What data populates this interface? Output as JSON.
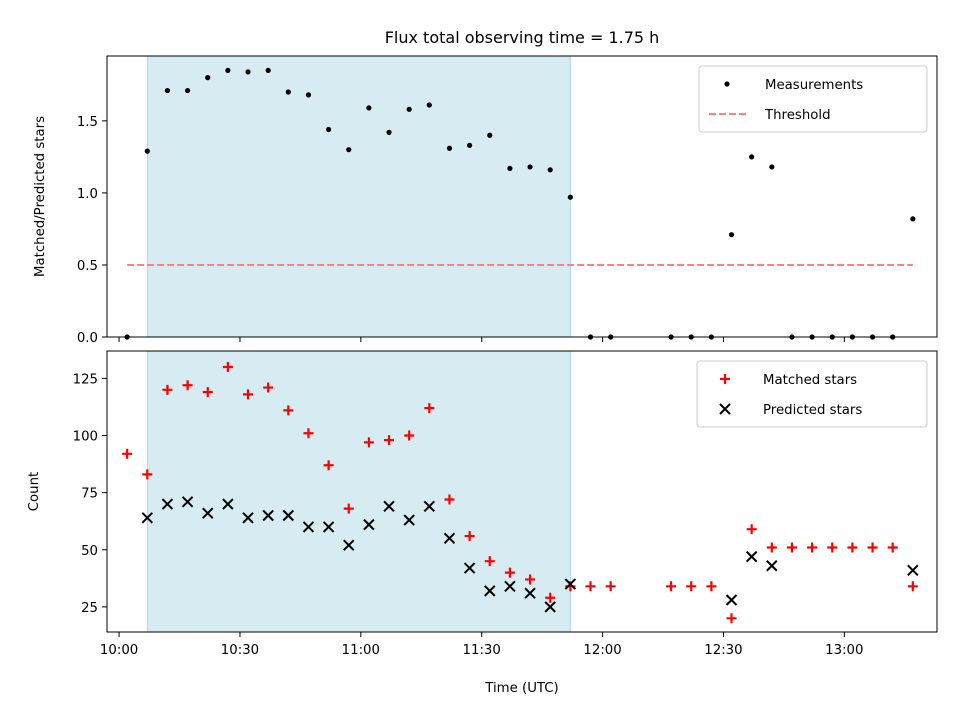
{
  "title": "Flux total observing time = 1.75 h",
  "colors": {
    "span": "#add8e6",
    "measurement": "#000000",
    "threshold": "#ff7f7f",
    "matched": "#ff0000",
    "predicted": "#000000"
  },
  "chart_data": [
    {
      "type": "scatter",
      "ylabel": "Matched/Predicted stars",
      "xlabel": "",
      "xlim": [
        "09:57",
        "13:23"
      ],
      "ylim": [
        0,
        1.95
      ],
      "yticks": [
        "0.0",
        "0.5",
        "1.0",
        "1.5"
      ],
      "grid": false,
      "legend_position": "top-right",
      "shaded_span": [
        "10:07",
        "11:52"
      ],
      "series": [
        {
          "name": "Measurements",
          "marker": "dot",
          "points": [
            [
              "10:02",
              0.0
            ],
            [
              "10:07",
              1.29
            ],
            [
              "10:12",
              1.71
            ],
            [
              "10:17",
              1.71
            ],
            [
              "10:22",
              1.8
            ],
            [
              "10:27",
              1.85
            ],
            [
              "10:32",
              1.84
            ],
            [
              "10:37",
              1.85
            ],
            [
              "10:42",
              1.7
            ],
            [
              "10:47",
              1.68
            ],
            [
              "10:52",
              1.44
            ],
            [
              "10:57",
              1.3
            ],
            [
              "11:02",
              1.59
            ],
            [
              "11:07",
              1.42
            ],
            [
              "11:12",
              1.58
            ],
            [
              "11:17",
              1.61
            ],
            [
              "11:22",
              1.31
            ],
            [
              "11:27",
              1.33
            ],
            [
              "11:32",
              1.4
            ],
            [
              "11:37",
              1.17
            ],
            [
              "11:42",
              1.18
            ],
            [
              "11:47",
              1.16
            ],
            [
              "11:52",
              0.97
            ],
            [
              "11:57",
              0.0
            ],
            [
              "12:02",
              0.0
            ],
            [
              "12:17",
              0.0
            ],
            [
              "12:22",
              0.0
            ],
            [
              "12:27",
              0.0
            ],
            [
              "12:32",
              0.71
            ],
            [
              "12:37",
              1.25
            ],
            [
              "12:42",
              1.18
            ],
            [
              "12:47",
              0.0
            ],
            [
              "12:52",
              0.0
            ],
            [
              "12:57",
              0.0
            ],
            [
              "13:02",
              0.0
            ],
            [
              "13:07",
              0.0
            ],
            [
              "13:12",
              0.0
            ],
            [
              "13:17",
              0.82
            ]
          ]
        },
        {
          "name": "Threshold",
          "marker": "dashed-line",
          "points": [
            [
              "10:02",
              0.5
            ],
            [
              "13:17",
              0.5
            ]
          ]
        }
      ]
    },
    {
      "type": "scatter",
      "ylabel": "Count",
      "xlabel": "Time (UTC)",
      "xlim": [
        "09:57",
        "13:23"
      ],
      "ylim": [
        14,
        137
      ],
      "yticks": [
        "25",
        "50",
        "75",
        "100",
        "125"
      ],
      "xticks": [
        "10:00",
        "10:30",
        "11:00",
        "11:30",
        "12:00",
        "12:30",
        "13:00"
      ],
      "grid": false,
      "legend_position": "top-right",
      "shaded_span": [
        "10:07",
        "11:52"
      ],
      "series": [
        {
          "name": "Matched stars",
          "marker": "plus",
          "points": [
            [
              "10:02",
              92
            ],
            [
              "10:07",
              83
            ],
            [
              "10:12",
              120
            ],
            [
              "10:17",
              122
            ],
            [
              "10:22",
              119
            ],
            [
              "10:27",
              130
            ],
            [
              "10:32",
              118
            ],
            [
              "10:37",
              121
            ],
            [
              "10:42",
              111
            ],
            [
              "10:47",
              101
            ],
            [
              "10:52",
              87
            ],
            [
              "10:57",
              68
            ],
            [
              "11:02",
              97
            ],
            [
              "11:07",
              98
            ],
            [
              "11:12",
              100
            ],
            [
              "11:17",
              112
            ],
            [
              "11:22",
              72
            ],
            [
              "11:27",
              56
            ],
            [
              "11:32",
              45
            ],
            [
              "11:37",
              40
            ],
            [
              "11:42",
              37
            ],
            [
              "11:47",
              29
            ],
            [
              "11:52",
              34
            ],
            [
              "11:57",
              34
            ],
            [
              "12:02",
              34
            ],
            [
              "12:17",
              34
            ],
            [
              "12:22",
              34
            ],
            [
              "12:27",
              34
            ],
            [
              "12:32",
              20
            ],
            [
              "12:37",
              59
            ],
            [
              "12:42",
              51
            ],
            [
              "12:47",
              51
            ],
            [
              "12:52",
              51
            ],
            [
              "12:57",
              51
            ],
            [
              "13:02",
              51
            ],
            [
              "13:07",
              51
            ],
            [
              "13:12",
              51
            ],
            [
              "13:17",
              34
            ]
          ]
        },
        {
          "name": "Predicted stars",
          "marker": "x",
          "points": [
            [
              "10:07",
              64
            ],
            [
              "10:12",
              70
            ],
            [
              "10:17",
              71
            ],
            [
              "10:22",
              66
            ],
            [
              "10:27",
              70
            ],
            [
              "10:32",
              64
            ],
            [
              "10:37",
              65
            ],
            [
              "10:42",
              65
            ],
            [
              "10:47",
              60
            ],
            [
              "10:52",
              60
            ],
            [
              "10:57",
              52
            ],
            [
              "11:02",
              61
            ],
            [
              "11:07",
              69
            ],
            [
              "11:12",
              63
            ],
            [
              "11:17",
              69
            ],
            [
              "11:22",
              55
            ],
            [
              "11:27",
              42
            ],
            [
              "11:32",
              32
            ],
            [
              "11:37",
              34
            ],
            [
              "11:42",
              31
            ],
            [
              "11:47",
              25
            ],
            [
              "11:52",
              35
            ],
            [
              "12:32",
              28
            ],
            [
              "12:37",
              47
            ],
            [
              "12:42",
              43
            ],
            [
              "13:17",
              41
            ]
          ]
        }
      ]
    }
  ]
}
